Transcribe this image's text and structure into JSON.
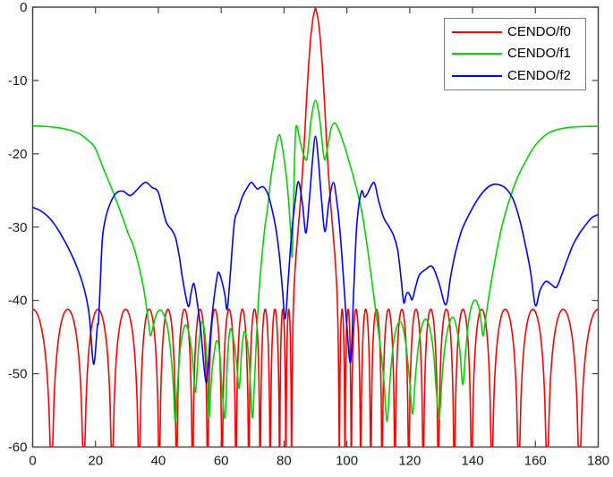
{
  "chart_data": {
    "type": "line",
    "title": "",
    "xlabel": "",
    "ylabel": "",
    "xlim": [
      0,
      180
    ],
    "ylim": [
      -60,
      0
    ],
    "x_ticks": [
      0,
      20,
      40,
      60,
      80,
      100,
      120,
      140,
      160,
      180
    ],
    "y_ticks": [
      0,
      -10,
      -20,
      -30,
      -40,
      -50,
      -60
    ],
    "grid": false,
    "background": "#ffffff",
    "axis_color": "#404040",
    "tick_label_color": "#1a1a1a",
    "legend": {
      "position": "top-right",
      "border_color": "#808080",
      "entries": [
        {
          "label": "CENDO/f0",
          "color": "#ff0000"
        },
        {
          "label": "CENDO/f1",
          "color": "#00d400"
        },
        {
          "label": "CENDO/f2",
          "color": "#0000ff"
        }
      ]
    },
    "series": [
      {
        "name": "CENDO/f0",
        "color": "#ff0000",
        "kind": "lobed",
        "sidelobe_peak_db": -41.2,
        "edge_db": -41.2,
        "clip_db": -60,
        "null_angles_deg": [
          6,
          16.3,
          25.3,
          33.9,
          40.3,
          45.8,
          50.9,
          55.7,
          60.3,
          64.7,
          68.8,
          72.4,
          75.6,
          78.6,
          80.6,
          82.4,
          97.6,
          99.4,
          101.4,
          104.4,
          107.6,
          111.2,
          115.3,
          119.7,
          124.3,
          129.1,
          134.2,
          139.7,
          146.1,
          154.7,
          163.7,
          174
        ],
        "mainlobe": {
          "center_deg": 90,
          "peak_db": 0,
          "first_null_offset_deg": 7.6,
          "profile_offset_db": [
            [
              0,
              0
            ],
            [
              0.8,
              -1.5
            ],
            [
              1.5,
              -4
            ],
            [
              2.2,
              -8
            ],
            [
              2.9,
              -13
            ],
            [
              3.5,
              -18
            ],
            [
              4.2,
              -23
            ],
            [
              4.9,
              -27.3
            ],
            [
              5.6,
              -30.8
            ],
            [
              6.3,
              -34.5
            ],
            [
              6.9,
              -39
            ],
            [
              7.3,
              -46
            ],
            [
              7.6,
              -62
            ]
          ]
        }
      },
      {
        "name": "CENDO/f1",
        "color": "#00d400",
        "kind": "points",
        "points": [
          [
            0,
            -16.2
          ],
          [
            5,
            -16.3
          ],
          [
            9,
            -16.5
          ],
          [
            12,
            -16.8
          ],
          [
            15,
            -17.3
          ],
          [
            18,
            -18.3
          ],
          [
            20,
            -19.3
          ],
          [
            22.5,
            -22
          ],
          [
            25.3,
            -24.9
          ],
          [
            28.2,
            -28.2
          ],
          [
            30.5,
            -31
          ],
          [
            32,
            -32.5
          ],
          [
            33.8,
            -35.3
          ],
          [
            35.5,
            -38.8
          ],
          [
            36.8,
            -42.8
          ],
          [
            37.5,
            -44.8
          ],
          [
            38.3,
            -43.6
          ],
          [
            39.3,
            -42
          ],
          [
            40.5,
            -41.3
          ],
          [
            41.6,
            -41.8
          ],
          [
            42.8,
            -43.4
          ],
          [
            43.8,
            -46.5
          ],
          [
            44.7,
            -51
          ],
          [
            45.4,
            -56.5
          ],
          [
            46.2,
            -51
          ],
          [
            47,
            -46.5
          ],
          [
            48,
            -44
          ],
          [
            48.9,
            -43.4
          ],
          [
            49.9,
            -44.8
          ],
          [
            50.9,
            -48
          ],
          [
            51.8,
            -52.5
          ],
          [
            52.8,
            -46.5
          ],
          [
            53.8,
            -42.9
          ],
          [
            54.8,
            -44.5
          ],
          [
            55.5,
            -49
          ],
          [
            56.1,
            -56
          ],
          [
            57,
            -50
          ],
          [
            58,
            -46.5
          ],
          [
            58.7,
            -45.5
          ],
          [
            59.5,
            -47
          ],
          [
            60.3,
            -52
          ],
          [
            61.2,
            -56
          ],
          [
            62,
            -48
          ],
          [
            62.8,
            -44
          ],
          [
            63.8,
            -45
          ],
          [
            64.8,
            -48
          ],
          [
            65.7,
            -52
          ],
          [
            66.5,
            -47
          ],
          [
            67.3,
            -44.3
          ],
          [
            68.2,
            -45.5
          ],
          [
            69,
            -49
          ],
          [
            69.9,
            -56
          ],
          [
            70.6,
            -51
          ],
          [
            71.3,
            -44.5
          ],
          [
            72,
            -39
          ],
          [
            72.8,
            -34.8
          ],
          [
            73.8,
            -30.4
          ],
          [
            74.8,
            -27.3
          ],
          [
            75.7,
            -23.7
          ],
          [
            76.7,
            -20.8
          ],
          [
            77.6,
            -18.6
          ],
          [
            78.6,
            -17.4
          ],
          [
            79.5,
            -19.2
          ],
          [
            80.5,
            -22.2
          ],
          [
            81.4,
            -26.1
          ],
          [
            82.1,
            -30.5
          ],
          [
            82.6,
            -34
          ],
          [
            83,
            -27
          ],
          [
            83.4,
            -20
          ],
          [
            83.9,
            -16.2
          ],
          [
            85,
            -18
          ],
          [
            86,
            -19.8
          ],
          [
            87.2,
            -20.8
          ],
          [
            88,
            -17.8
          ],
          [
            88.8,
            -14.8
          ],
          [
            90,
            -12.7
          ],
          [
            91.2,
            -14.8
          ],
          [
            92,
            -17.8
          ],
          [
            92.9,
            -20.8
          ],
          [
            94,
            -18.8
          ],
          [
            95,
            -16.5
          ],
          [
            96.2,
            -15.8
          ],
          [
            97.5,
            -16.8
          ],
          [
            98.5,
            -18
          ],
          [
            99.5,
            -19.3
          ],
          [
            100.8,
            -21.2
          ],
          [
            102.2,
            -23.3
          ],
          [
            103.5,
            -25.5
          ],
          [
            104.8,
            -28
          ],
          [
            106,
            -31.2
          ],
          [
            107.2,
            -34.9
          ],
          [
            108.3,
            -38.5
          ],
          [
            109.5,
            -42.5
          ],
          [
            110.7,
            -46.5
          ],
          [
            111.8,
            -51
          ],
          [
            112.8,
            -56.5
          ],
          [
            113.8,
            -50.5
          ],
          [
            114.8,
            -46
          ],
          [
            115.9,
            -43.6
          ],
          [
            117,
            -42.9
          ],
          [
            118,
            -44
          ],
          [
            119,
            -46.8
          ],
          [
            120,
            -51
          ],
          [
            120.9,
            -55.5
          ],
          [
            121.9,
            -50
          ],
          [
            122.9,
            -45.8
          ],
          [
            124.1,
            -43.2
          ],
          [
            125.3,
            -42.6
          ],
          [
            126.5,
            -44
          ],
          [
            127.6,
            -47.2
          ],
          [
            128.5,
            -52.5
          ],
          [
            129.4,
            -56
          ],
          [
            130.3,
            -50.5
          ],
          [
            131.3,
            -46
          ],
          [
            132.5,
            -43.3
          ],
          [
            133.7,
            -42.3
          ],
          [
            134.9,
            -43.6
          ],
          [
            136,
            -47
          ],
          [
            136.9,
            -51.5
          ],
          [
            137.8,
            -47
          ],
          [
            138.7,
            -43
          ],
          [
            139.8,
            -40.6
          ],
          [
            141,
            -40
          ],
          [
            142.3,
            -41.5
          ],
          [
            143.3,
            -44.8
          ],
          [
            144,
            -43
          ],
          [
            145,
            -40
          ],
          [
            146.3,
            -36.6
          ],
          [
            147.6,
            -33.5
          ],
          [
            149,
            -30.5
          ],
          [
            151,
            -27.3
          ],
          [
            153,
            -24.7
          ],
          [
            155,
            -22.6
          ],
          [
            157.2,
            -20.8
          ],
          [
            159.2,
            -19.3
          ],
          [
            161.5,
            -18.1
          ],
          [
            164,
            -17.2
          ],
          [
            167,
            -16.7
          ],
          [
            170,
            -16.45
          ],
          [
            174,
            -16.3
          ],
          [
            180,
            -16.25
          ]
        ]
      },
      {
        "name": "CENDO/f2",
        "color": "#0000ff",
        "kind": "points",
        "points": [
          [
            0,
            -27.3
          ],
          [
            3,
            -27.9
          ],
          [
            6,
            -29.1
          ],
          [
            9,
            -31
          ],
          [
            12,
            -33.4
          ],
          [
            14.5,
            -35.9
          ],
          [
            16.5,
            -38.6
          ],
          [
            18,
            -42
          ],
          [
            19.4,
            -48.7
          ],
          [
            20.6,
            -43.5
          ],
          [
            21,
            -42.5
          ],
          [
            22,
            -33
          ],
          [
            22.5,
            -30.4
          ],
          [
            23.9,
            -27.7
          ],
          [
            26.3,
            -25.5
          ],
          [
            28.7,
            -25.1
          ],
          [
            31,
            -25.7
          ],
          [
            33,
            -25
          ],
          [
            35.8,
            -23.9
          ],
          [
            38,
            -24.6
          ],
          [
            40,
            -25.3
          ],
          [
            42.4,
            -29.2
          ],
          [
            44.3,
            -30.4
          ],
          [
            45.5,
            -31.5
          ],
          [
            46.7,
            -34.1
          ],
          [
            47.7,
            -37
          ],
          [
            49.5,
            -40.8
          ],
          [
            50.4,
            -39
          ],
          [
            51.3,
            -37.7
          ],
          [
            52.3,
            -40
          ],
          [
            53.5,
            -44
          ],
          [
            55.2,
            -51.2
          ],
          [
            56.5,
            -45
          ],
          [
            57.5,
            -40.5
          ],
          [
            58.7,
            -36.8
          ],
          [
            59.3,
            -36.2
          ],
          [
            60.3,
            -37.5
          ],
          [
            61.2,
            -39.3
          ],
          [
            61.9,
            -41.2
          ],
          [
            62.8,
            -37
          ],
          [
            63.5,
            -32.8
          ],
          [
            64.3,
            -29
          ],
          [
            65.3,
            -27.8
          ],
          [
            66.7,
            -25.9
          ],
          [
            68,
            -24.8
          ],
          [
            69.5,
            -23.9
          ],
          [
            70.5,
            -24.3
          ],
          [
            71.5,
            -24.8
          ],
          [
            72.4,
            -24.6
          ],
          [
            73.3,
            -24.5
          ],
          [
            74.3,
            -25
          ],
          [
            75.2,
            -25.9
          ],
          [
            76.7,
            -28.6
          ],
          [
            77.7,
            -31
          ],
          [
            78.6,
            -34.2
          ],
          [
            79.5,
            -38.5
          ],
          [
            80.4,
            -42.5
          ],
          [
            81.4,
            -36.8
          ],
          [
            82.4,
            -31
          ],
          [
            83.5,
            -26.6
          ],
          [
            84.6,
            -23.8
          ],
          [
            85.9,
            -26.9
          ],
          [
            87,
            -30.8
          ],
          [
            88.2,
            -25.5
          ],
          [
            89,
            -21.2
          ],
          [
            90,
            -17.6
          ],
          [
            91,
            -21.2
          ],
          [
            91.8,
            -25.5
          ],
          [
            93,
            -30.6
          ],
          [
            94.3,
            -26.5
          ],
          [
            95.7,
            -23.9
          ],
          [
            96.8,
            -26.5
          ],
          [
            97.9,
            -31
          ],
          [
            99,
            -37.5
          ],
          [
            100,
            -43.5
          ],
          [
            101.2,
            -48.4
          ],
          [
            102.2,
            -38.5
          ],
          [
            103.2,
            -29.5
          ],
          [
            104.6,
            -25.2
          ],
          [
            105.6,
            -25.9
          ],
          [
            106.6,
            -25.4
          ],
          [
            107.7,
            -24.4
          ],
          [
            108.8,
            -24
          ],
          [
            110,
            -26.2
          ],
          [
            111.7,
            -28.7
          ],
          [
            113.5,
            -30
          ],
          [
            115,
            -31.3
          ],
          [
            116.2,
            -33.2
          ],
          [
            117.2,
            -36.8
          ],
          [
            118.1,
            -40.3
          ],
          [
            118.8,
            -39.3
          ],
          [
            119.4,
            -38.9
          ],
          [
            120.1,
            -39.3
          ],
          [
            120.8,
            -39.9
          ],
          [
            121.8,
            -38.3
          ],
          [
            123,
            -36.6
          ],
          [
            125,
            -35.8
          ],
          [
            127.2,
            -35.4
          ],
          [
            129.3,
            -37.6
          ],
          [
            131.5,
            -40.6
          ],
          [
            133,
            -36.8
          ],
          [
            134.5,
            -33.6
          ],
          [
            136.6,
            -30.4
          ],
          [
            139,
            -28.2
          ],
          [
            141.5,
            -26.3
          ],
          [
            144,
            -24.9
          ],
          [
            146.5,
            -24.2
          ],
          [
            149,
            -24.3
          ],
          [
            151,
            -24.9
          ],
          [
            153,
            -26.3
          ],
          [
            155,
            -29
          ],
          [
            157,
            -32.8
          ],
          [
            158.5,
            -36.2
          ],
          [
            160,
            -40.7
          ],
          [
            161.5,
            -38.6
          ],
          [
            163.3,
            -37.4
          ],
          [
            165,
            -37.8
          ],
          [
            166.7,
            -38.2
          ],
          [
            168.3,
            -36.6
          ],
          [
            170,
            -34.6
          ],
          [
            172,
            -32.4
          ],
          [
            174,
            -30.9
          ],
          [
            176,
            -29.7
          ],
          [
            178,
            -28.7
          ],
          [
            180,
            -28.3
          ]
        ]
      }
    ]
  }
}
